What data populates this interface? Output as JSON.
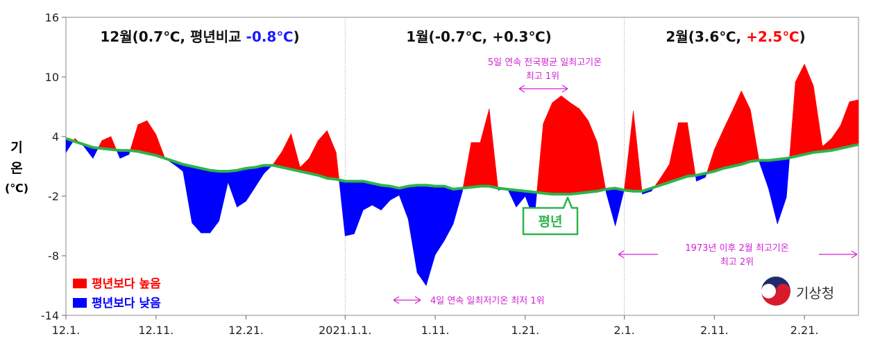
{
  "y_axis_label": [
    "기",
    "온",
    "(℃)"
  ],
  "logo_text": "기상청",
  "colors": {
    "above": "#ff0000",
    "below": "#0000ff",
    "normal": "#2db34a",
    "annotation": "#d21fd2",
    "warm_text": "#ff0000",
    "cool_text": "#0033cc"
  },
  "month_titles": [
    {
      "prefix": "12월(0.7℃, 평년비교 ",
      "delta": "-0.8℃",
      "suffix": ")",
      "delta_color": "#1a1aff"
    },
    {
      "prefix": "1월(-0.7℃, +0.3℃)",
      "delta": "",
      "suffix": "",
      "delta_color": "#111111"
    },
    {
      "prefix": "2월(3.6℃, ",
      "delta": "+2.5℃",
      "suffix": ")",
      "delta_color": "#ff0000"
    }
  ],
  "annotations": [
    {
      "text": [
        "5일 연속 전국평균 일최고기온",
        "최고 1위"
      ]
    },
    {
      "text": [
        "4일 연속 일최저기온 최저 1위"
      ]
    },
    {
      "text": [
        "1973년 이후 2월 최고기온",
        "최고 2위"
      ]
    }
  ],
  "normal_label": "평년",
  "legend": {
    "above": "평년보다 높음",
    "below": "평년보다 낮음"
  },
  "chart_data": {
    "type": "area",
    "x_tick_labels": [
      "12.1.",
      "12.11.",
      "12.21.",
      "2021.1.1.",
      "1.11.",
      "1.21.",
      "2.1.",
      "2.11.",
      "2.21."
    ],
    "x_tick_days": [
      0,
      10,
      20,
      31,
      41,
      51,
      62,
      72,
      82
    ],
    "ylim": [
      -14,
      16
    ],
    "yticks": [
      -14,
      -8,
      -2,
      4,
      10,
      16
    ],
    "series": [
      {
        "name": "기온",
        "values": [
          2.4,
          3.8,
          3.0,
          1.8,
          3.6,
          4.0,
          1.8,
          2.2,
          5.2,
          5.6,
          4.2,
          1.8,
          1.2,
          0.5,
          -4.7,
          -5.7,
          -5.7,
          -4.5,
          -0.6,
          -3.1,
          -2.5,
          -1.1,
          0.3,
          1.2,
          2.5,
          4.3,
          0.9,
          1.8,
          3.6,
          4.6,
          2.4,
          -6.0,
          -5.8,
          -3.4,
          -2.9,
          -3.4,
          -2.4,
          -1.9,
          -4.3,
          -9.7,
          -11.0,
          -7.9,
          -6.5,
          -4.8,
          -1.6,
          3.4,
          3.4,
          6.8,
          -1.4,
          -1.2,
          -3.1,
          -2.0,
          -4.4,
          5.3,
          7.4,
          8.1,
          7.4,
          6.8,
          5.6,
          3.4,
          -1.7,
          -5.0,
          -1.3,
          6.6,
          -1.8,
          -1.5,
          -0.2,
          1.2,
          5.4,
          5.4,
          -0.5,
          -0.1,
          2.7,
          4.7,
          6.6,
          8.6,
          6.7,
          1.4,
          -1.2,
          -4.8,
          -2.1,
          9.5,
          11.3,
          9.1,
          3.0,
          3.8,
          5.1,
          7.5,
          7.7
        ]
      },
      {
        "name": "평년",
        "values": [
          3.8,
          3.5,
          3.2,
          2.9,
          2.8,
          2.7,
          2.6,
          2.6,
          2.5,
          2.3,
          2.1,
          1.8,
          1.5,
          1.2,
          1.0,
          0.8,
          0.6,
          0.5,
          0.5,
          0.6,
          0.8,
          0.9,
          1.1,
          1.1,
          0.9,
          0.7,
          0.5,
          0.3,
          0.1,
          -0.2,
          -0.3,
          -0.5,
          -0.5,
          -0.5,
          -0.7,
          -0.9,
          -1.0,
          -1.2,
          -1.0,
          -0.9,
          -0.9,
          -1.0,
          -1.0,
          -1.3,
          -1.2,
          -1.1,
          -1.0,
          -1.0,
          -1.2,
          -1.3,
          -1.4,
          -1.5,
          -1.6,
          -1.7,
          -1.8,
          -1.8,
          -1.8,
          -1.7,
          -1.6,
          -1.5,
          -1.3,
          -1.2,
          -1.4,
          -1.5,
          -1.5,
          -1.2,
          -0.9,
          -0.6,
          -0.3,
          0.0,
          0.1,
          0.3,
          0.5,
          0.8,
          1.0,
          1.2,
          1.5,
          1.6,
          1.6,
          1.7,
          1.8,
          2.0,
          2.2,
          2.4,
          2.5,
          2.6,
          2.8,
          3.0,
          3.2
        ]
      }
    ]
  }
}
